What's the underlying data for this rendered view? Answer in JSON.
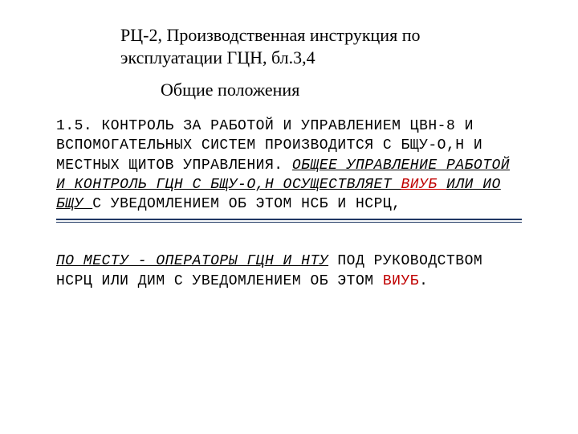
{
  "heading": "РЦ-2, Производственная инструкция по эксплуатации ГЦН, бл.3,4",
  "subheading": "Общие положения",
  "para1": {
    "t1": "1.5. КОНТРОЛЬ ЗА РАБОТОЙ И УПРАВЛЕНИЕМ ЦВН-8 И ВСПОМОГАТЕЛЬНЫХ СИСТЕМ ПРОИЗВОДИТСЯ С БЩУ-О,Н И МЕСТНЫХ ЩИТОВ УПРАВЛЕНИЯ. ",
    "u1": "ОБЩЕЕ УПРАВЛЕНИЕ РАБОТОЙ И КОНТРОЛЬ ГЦН С БЩУ-О,Н ОСУЩЕСТВЛЯЕТ ",
    "viub": "ВИУБ ",
    "u2": " ИЛИ ИО БЩУ         ",
    "t2": " С УВЕДОМЛЕНИЕМ ОБ ЭТОМ НСБ И НСРЦ,"
  },
  "para2": {
    "u1": "ПО МЕСТУ - ОПЕРАТОРЫ ГЦН И НТУ",
    "t1": "   ПОД РУКОВОДСТВОМ НСРЦ ИЛИ ДИМ С УВЕДОМЛЕНИЕМ ОБ ЭТОМ ",
    "viub": "ВИУБ",
    "t2": "."
  },
  "colors": {
    "text": "#000000",
    "highlight": "#c00000",
    "divider_top": "#203864",
    "divider_bottom": "#203864",
    "background": "#ffffff"
  },
  "typography": {
    "heading_font": "Times New Roman",
    "heading_size_pt": 17,
    "body_font": "Courier New",
    "body_size_pt": 14
  }
}
